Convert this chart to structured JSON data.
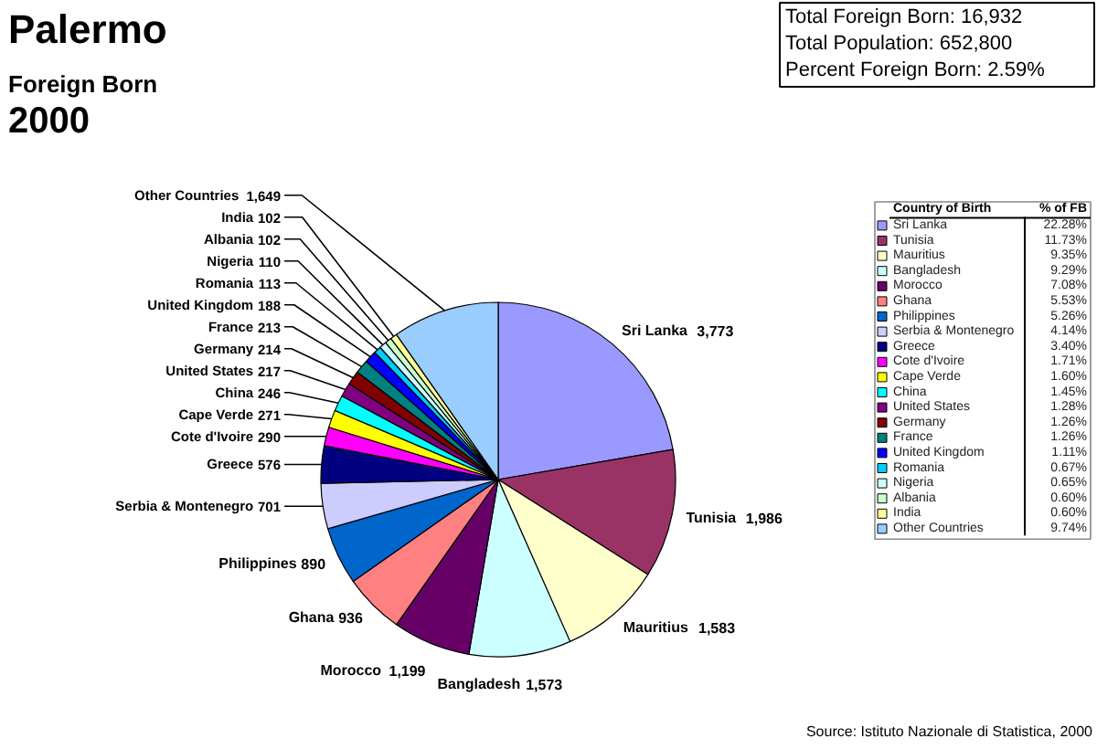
{
  "chart_data": {
    "type": "pie",
    "title": "Palermo",
    "subtitle": "Foreign Born",
    "categories": [
      "Sri Lanka",
      "Tunisia",
      "Mauritius",
      "Bangladesh",
      "Morocco",
      "Ghana",
      "Philippines",
      "Serbia & Montenegro",
      "Greece",
      "Cote d'Ivoire",
      "Cape Verde",
      "China",
      "United States",
      "Germany",
      "France",
      "United Kingdom",
      "Romania",
      "Nigeria",
      "Albania",
      "India",
      "Other Countries"
    ],
    "values": [
      3773,
      1986,
      1583,
      1573,
      1199,
      936,
      890,
      701,
      576,
      290,
      271,
      246,
      217,
      214,
      213,
      188,
      113,
      110,
      102,
      102,
      1649
    ],
    "value_labels": [
      "3,773",
      "1,986",
      "1,583",
      "1,573",
      "1,199",
      "936",
      "890",
      "701",
      "576",
      "290",
      "271",
      "246",
      "217",
      "214",
      "213",
      "188",
      "113",
      "110",
      "102",
      "102",
      "1,649"
    ],
    "colors": [
      "#9999ff",
      "#993366",
      "#ffffcc",
      "#ccffff",
      "#660066",
      "#ff8080",
      "#0066cc",
      "#ccccff",
      "#000080",
      "#ff00ff",
      "#ffff00",
      "#00ffff",
      "#800080",
      "#800000",
      "#008080",
      "#0000ff",
      "#00ccff",
      "#ccffff",
      "#ccffcc",
      "#ffff99",
      "#99ccff"
    ],
    "legend": "right",
    "legend_title": "Country of Birth",
    "annotations": [
      "2000",
      "% of FB",
      "Total Foreign Born: 16,932",
      "Total Population: 652,800",
      "Percent Foreign Born: 2.59%",
      "Source: Istituto Nazionale di Statistica, 2000",
      "22.28%",
      "11.73%",
      "9.35%",
      "9.29%",
      "7.08%",
      "5.53%",
      "5.26%",
      "4.14%",
      "3.40%",
      "1.71%",
      "1.60%",
      "1.45%",
      "1.28%",
      "1.26%",
      "1.26%",
      "1.11%",
      "0.67%",
      "0.65%",
      "0.60%",
      "0.60%",
      "9.74%"
    ]
  }
}
